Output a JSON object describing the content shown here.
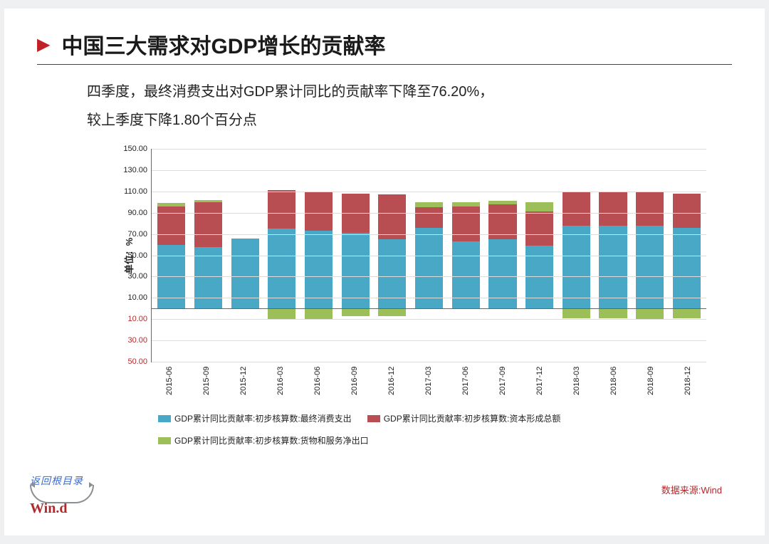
{
  "title": "中国三大需求对GDP增长的贡献率",
  "body_line1": "四季度，最终消费支出对GDP累计同比的贡献率下降至76.20%，",
  "body_line2": "较上季度下降1.80个百分点",
  "y_axis_label": "单位：%",
  "source_label": "数据来源:Wind",
  "logo_return": "返回根目录",
  "logo_brand": "Win.d",
  "chart": {
    "type": "stacked-bar",
    "ymin": -50,
    "ymax": 150,
    "ytick_step": 20,
    "grid_color": "#dcdcdc",
    "axis_color": "#666666",
    "background_color": "#ffffff",
    "yticks": [
      150,
      130,
      110,
      90,
      70,
      50,
      30,
      10,
      -10,
      -30,
      -50
    ],
    "yticks_neg_format": true,
    "series_colors": {
      "consumption": "#4aa8c7",
      "capital": "#b84e52",
      "netexport": "#9dbf5a"
    },
    "legend": [
      "GDP累计同比贡献率:初步核算数:最终消费支出",
      "GDP累计同比贡献率:初步核算数:资本形成总额",
      "GDP累计同比贡献率:初步核算数:货物和服务净出口"
    ],
    "categories": [
      "2015-06",
      "2015-09",
      "2015-12",
      "2016-03",
      "2016-06",
      "2016-09",
      "2016-12",
      "2017-03",
      "2017-06",
      "2017-09",
      "2017-12",
      "2018-03",
      "2018-06",
      "2018-09",
      "2018-12"
    ],
    "data": [
      {
        "consumption": 60.0,
        "capital": 36.0,
        "netexport": 3.0
      },
      {
        "consumption": 58.0,
        "capital": 42.0,
        "netexport": 2.0
      },
      {
        "consumption": 66.0,
        "capital": 0.0,
        "netexport": 0.0
      },
      {
        "consumption": 75.0,
        "capital": 36.0,
        "netexport": -10.0
      },
      {
        "consumption": 73.0,
        "capital": 37.0,
        "netexport": -10.0
      },
      {
        "consumption": 71.0,
        "capital": 37.0,
        "netexport": -7.0
      },
      {
        "consumption": 65.0,
        "capital": 42.0,
        "netexport": -7.0
      },
      {
        "consumption": 76.0,
        "capital": 19.0,
        "netexport": 5.0
      },
      {
        "consumption": 63.0,
        "capital": 33.0,
        "netexport": 4.0
      },
      {
        "consumption": 65.0,
        "capital": 33.0,
        "netexport": 3.0
      },
      {
        "consumption": 59.0,
        "capital": 32.0,
        "netexport": 9.0
      },
      {
        "consumption": 78.0,
        "capital": 31.0,
        "netexport": -9.0
      },
      {
        "consumption": 78.0,
        "capital": 31.0,
        "netexport": -9.0
      },
      {
        "consumption": 78.0,
        "capital": 32.0,
        "netexport": -10.0
      },
      {
        "consumption": 76.0,
        "capital": 32.0,
        "netexport": -9.0
      }
    ]
  }
}
